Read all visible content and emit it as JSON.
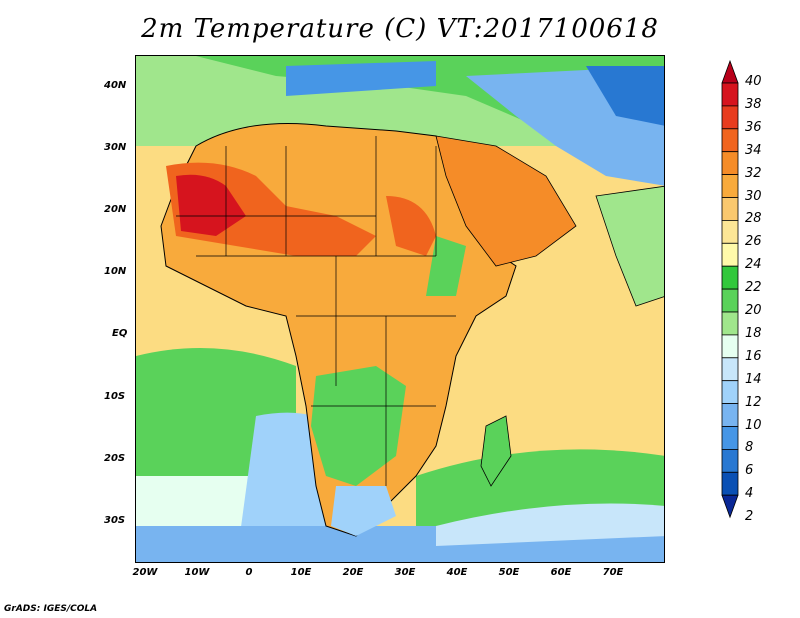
{
  "title": "2m Temperature (C) VT:2017100618",
  "credit": "GrADS: IGES/COLA",
  "lat_labels": [
    "40N",
    "30N",
    "20N",
    "10N",
    "EQ",
    "10S",
    "20S",
    "30S"
  ],
  "lon_labels": [
    "20W",
    "10W",
    "0",
    "10E",
    "20E",
    "30E",
    "40E",
    "50E",
    "60E",
    "70E"
  ],
  "colorbar": {
    "labels": [
      "40",
      "38",
      "36",
      "34",
      "32",
      "30",
      "28",
      "26",
      "24",
      "22",
      "20",
      "18",
      "16",
      "14",
      "12",
      "10",
      "8",
      "6",
      "4",
      "2"
    ],
    "colors": [
      "#b8001a",
      "#d6141e",
      "#e83c1e",
      "#f0641e",
      "#f58c28",
      "#f8aa3c",
      "#fac86e",
      "#fce696",
      "#fffaaa",
      "#32c83c",
      "#5ad25a",
      "#a0e68c",
      "#e6fff0",
      "#c8e6fa",
      "#a0d2fa",
      "#78b4f0",
      "#4696e6",
      "#2878d2",
      "#0a50b4",
      "#0a2896"
    ]
  },
  "colors": {
    "ocean_warm": "#fcdc82",
    "ocean_mid": "#fffaaa",
    "ocean_cool_green": "#5ad25a",
    "ocean_cold": "#c8e6fa",
    "sahara_hot": "#e83c1e",
    "land_hot": "#f58c28",
    "land_warm": "#f8aa3c",
    "med_cool": "#4696e6",
    "border": "#000000"
  }
}
